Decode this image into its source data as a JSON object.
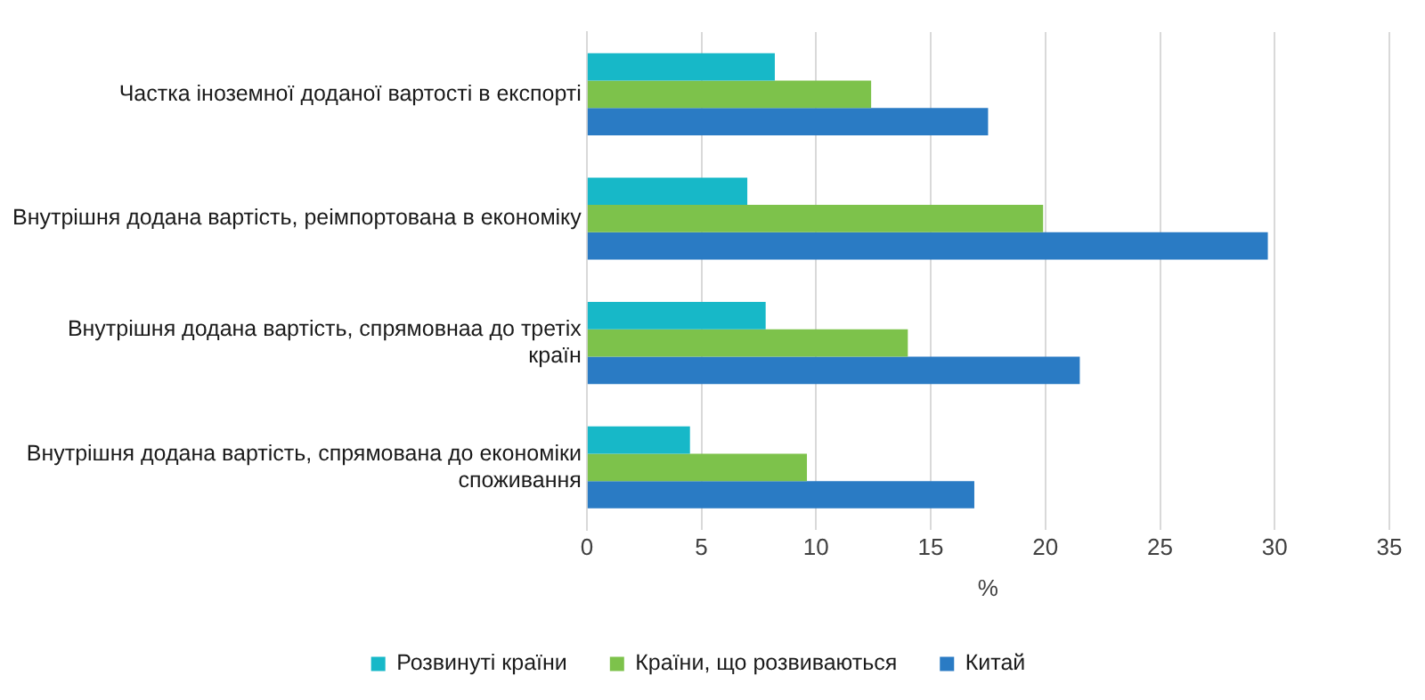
{
  "chart_data": {
    "type": "bar",
    "orientation": "horizontal",
    "xlabel": "%",
    "categories": [
      "Частка іноземної доданої вартості в експорті",
      "Внутрішня додана вартість, реімпортована в економіку",
      "Внутрішня додана вартість, спрямовнаа до третіх країн",
      "Внутрішня додана вартість, спрямована до економіки споживання"
    ],
    "series": [
      {
        "name": "Розвинуті країни",
        "color": "#17b8c8",
        "values": [
          8.2,
          7.0,
          7.8,
          4.5
        ]
      },
      {
        "name": "Країни, що розвиваються",
        "color": "#7dc24b",
        "values": [
          12.4,
          19.9,
          14.0,
          9.6
        ]
      },
      {
        "name": "Китай",
        "color": "#2a7bc4",
        "values": [
          17.5,
          29.7,
          21.5,
          16.9
        ]
      }
    ],
    "xlim": [
      0,
      35
    ],
    "xticks": [
      0,
      5,
      10,
      15,
      20,
      25,
      30,
      35
    ],
    "grid": "x",
    "legend": "bottom"
  }
}
